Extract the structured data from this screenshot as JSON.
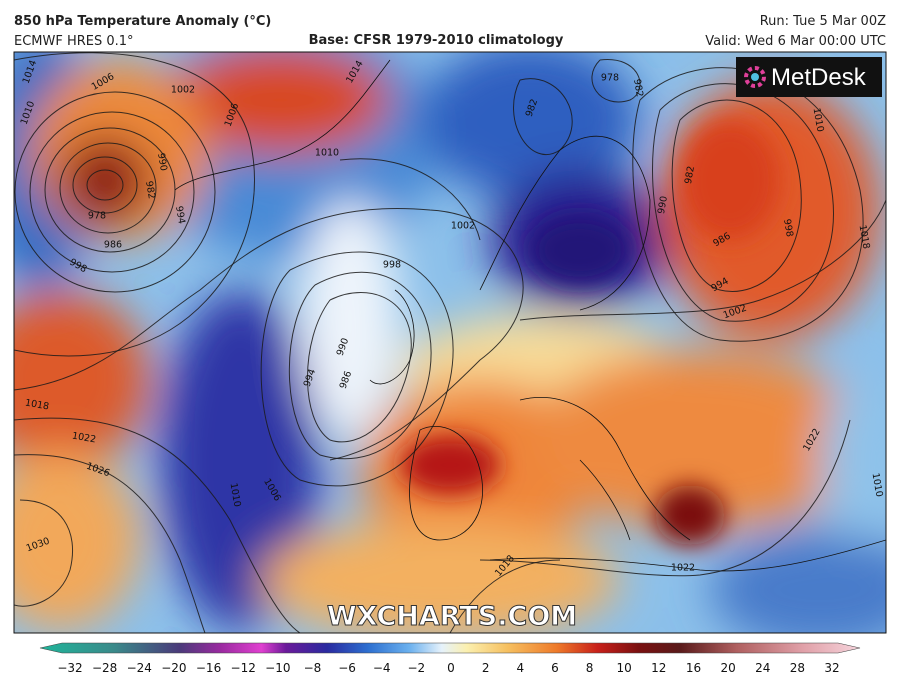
{
  "header": {
    "title": "850 hPa Temperature Anomaly (°C)",
    "model": "ECMWF HRES 0.1°",
    "base": "Base: CFSR 1979-2010 climatology",
    "run": "Run: Tue 5 Mar 00Z",
    "valid": "Valid: Wed 6 Mar 00:00 UTC"
  },
  "logo": "MetDesk",
  "watermark": "WXCHARTS.COM",
  "isobar_labels": [
    1014,
    1010,
    1006,
    1002,
    1006,
    1014,
    1010,
    978,
    986,
    998,
    990,
    982,
    994,
    1002,
    998,
    990,
    994,
    986,
    1018,
    1022,
    1026,
    1030,
    1006,
    1010,
    1018,
    1022,
    1022,
    1018,
    1010,
    978,
    982,
    982,
    982,
    990,
    986,
    994,
    1002,
    998,
    1010
  ],
  "colorbar": {
    "ticks": [
      {
        "value": -32,
        "label": "−32"
      },
      {
        "value": -28,
        "label": "−28"
      },
      {
        "value": -24,
        "label": "−24"
      },
      {
        "value": -20,
        "label": "−20"
      },
      {
        "value": -16,
        "label": "−16"
      },
      {
        "value": -12,
        "label": "−12"
      },
      {
        "value": -10,
        "label": "−10"
      },
      {
        "value": -8,
        "label": "−8"
      },
      {
        "value": -6,
        "label": "−6"
      },
      {
        "value": -4,
        "label": "−4"
      },
      {
        "value": -2,
        "label": "−2"
      },
      0,
      2,
      4,
      6,
      8,
      10,
      12,
      16,
      20,
      24,
      28,
      32
    ]
  }
}
